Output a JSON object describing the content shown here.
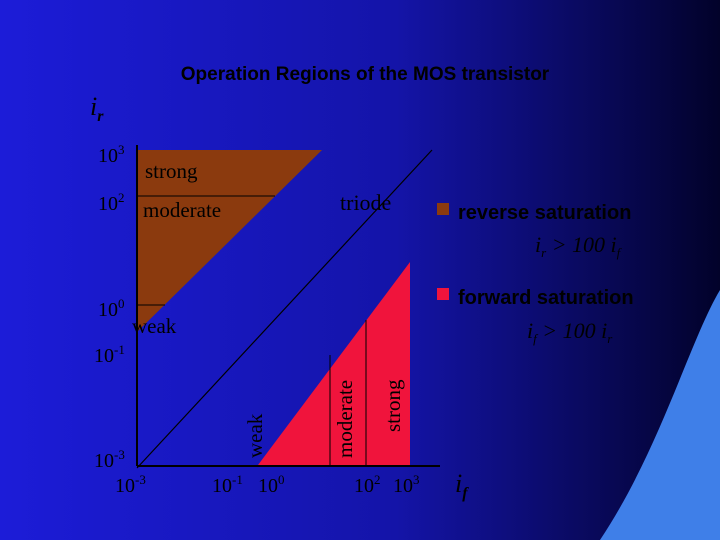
{
  "title": "Operation Regions of the MOS transistor",
  "axes": {
    "y_label": {
      "base": "i",
      "sub": "r"
    },
    "x_label": {
      "base": "i",
      "sub": "f"
    },
    "y_ticks": [
      {
        "base": "10",
        "exp": "3"
      },
      {
        "base": "10",
        "exp": "2"
      },
      {
        "base": "10",
        "exp": "0"
      },
      {
        "base": "10",
        "exp": "-1"
      },
      {
        "base": "10",
        "exp": "-3"
      }
    ],
    "x_ticks": [
      {
        "base": "10",
        "exp": "-3"
      },
      {
        "base": "10",
        "exp": "-1"
      },
      {
        "base": "10",
        "exp": "0"
      },
      {
        "base": "10",
        "exp": "2"
      },
      {
        "base": "10",
        "exp": "3"
      }
    ]
  },
  "regions": {
    "reverse": [
      "strong",
      "moderate",
      "weak"
    ],
    "forward": [
      "weak",
      "moderate",
      "strong"
    ],
    "triode": "triode"
  },
  "legend": [
    {
      "label": "reverse saturation",
      "condition": {
        "lhs": "i",
        "lhs_sub": "r",
        "op": " > 100 ",
        "rhs": "i",
        "rhs_sub": "f"
      }
    },
    {
      "label": "forward saturation",
      "condition": {
        "lhs": "i",
        "lhs_sub": "f",
        "op": " > 100 ",
        "rhs": "i",
        "rhs_sub": "r"
      }
    }
  ]
}
